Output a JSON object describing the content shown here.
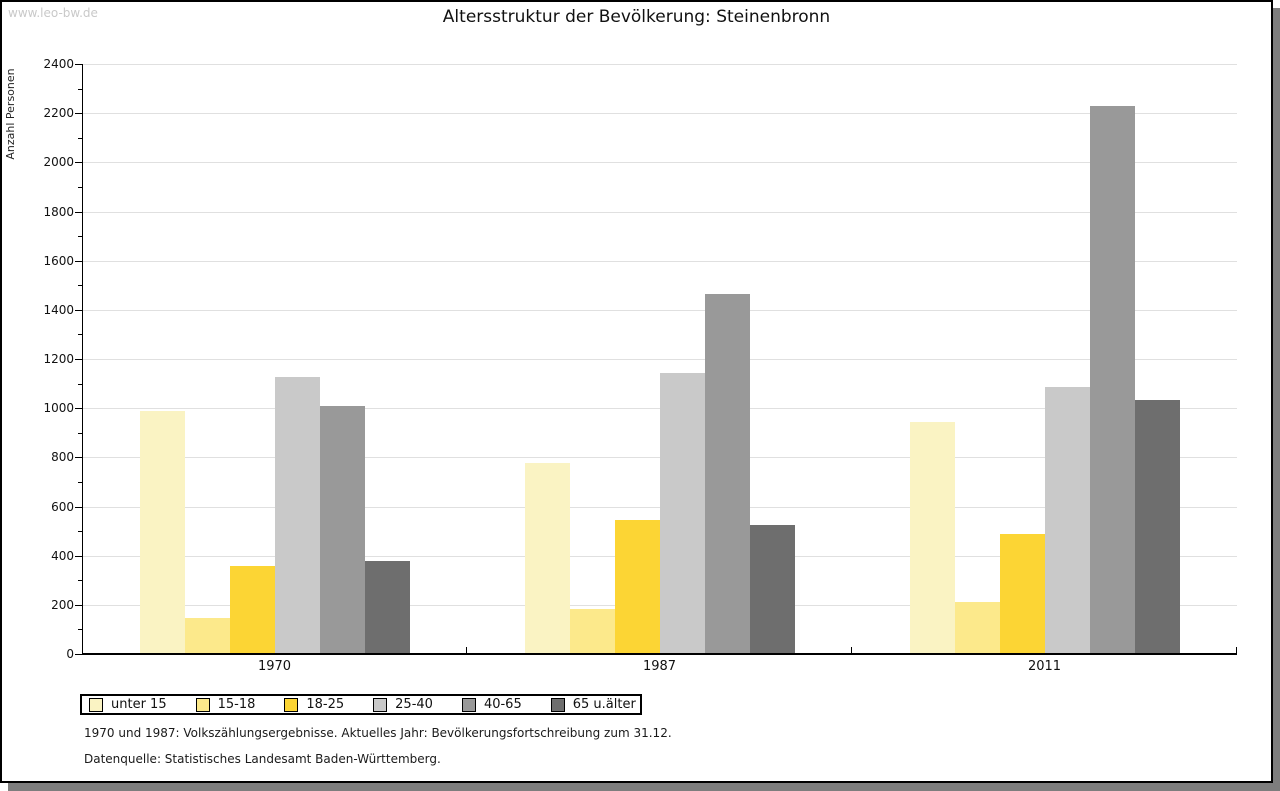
{
  "watermark": "www.leo-bw.de",
  "title": "Altersstruktur der Bevölkerung: Steinenbronn",
  "chart_data": {
    "type": "bar",
    "title": "Altersstruktur der Bevölkerung: Steinenbronn",
    "ylabel": "Anzahl Personen",
    "xlabel": "",
    "categories": [
      "1970",
      "1987",
      "2011"
    ],
    "series": [
      {
        "name": "unter 15",
        "color": "#faf3c3",
        "values": [
          990,
          775,
          945
        ]
      },
      {
        "name": "15-18",
        "color": "#fce98b",
        "values": [
          145,
          185,
          210
        ]
      },
      {
        "name": "18-25",
        "color": "#fcd534",
        "values": [
          360,
          545,
          490
        ]
      },
      {
        "name": "25-40",
        "color": "#c9c9c9",
        "values": [
          1125,
          1145,
          1085
        ]
      },
      {
        "name": "40-65",
        "color": "#999999",
        "values": [
          1010,
          1465,
          2230
        ]
      },
      {
        "name": "65 u.älter",
        "color": "#6e6e6e",
        "values": [
          380,
          525,
          1035
        ]
      }
    ],
    "ylim": [
      0,
      2400
    ],
    "ytick_step": 200,
    "yminor_step": 100,
    "grid": true,
    "legend_position": "bottom-left"
  },
  "footer": {
    "line1": "1970 und 1987: Volkszählungsergebnisse. Aktuelles Jahr: Bevölkerungsfortschreibung zum 31.12.",
    "line2": "Datenquelle: Statistisches Landesamt Baden-Württemberg."
  },
  "colors": {
    "shadow": "#7d7d7d",
    "gridline": "#e0e0e0",
    "watermark": "#c9c9c9"
  }
}
